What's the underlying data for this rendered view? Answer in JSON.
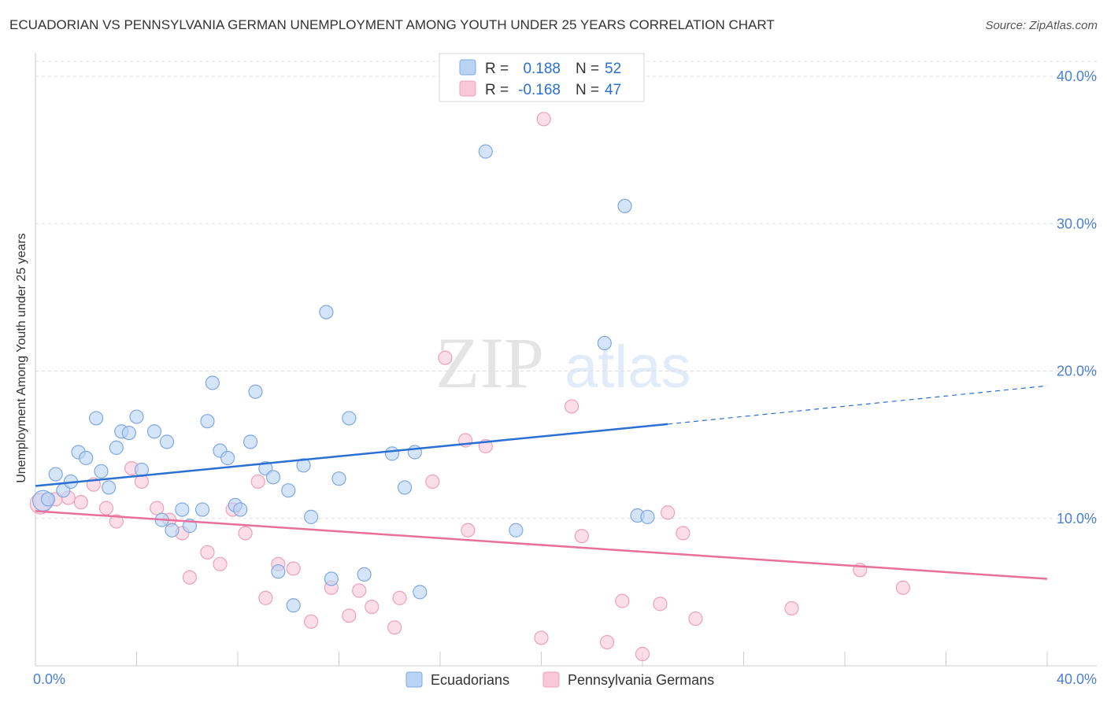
{
  "title": "ECUADORIAN VS PENNSYLVANIA GERMAN UNEMPLOYMENT AMONG YOUTH UNDER 25 YEARS CORRELATION CHART",
  "source": "Source: ZipAtlas.com",
  "colors": {
    "blue_fill": "#b9d3f5",
    "blue_stroke": "#7fa8e0",
    "blue_line": "#2a6fd4",
    "pink_fill": "#f9c8d8",
    "pink_stroke": "#eda0bb",
    "pink_line": "#e8709a",
    "label_blue": "#4a7fd4"
  },
  "chart_data": {
    "type": "scatter",
    "title": "ECUADORIAN VS PENNSYLVANIA GERMAN UNEMPLOYMENT AMONG YOUTH UNDER 25 YEARS CORRELATION CHART",
    "xlabel": "",
    "ylabel": "Unemployment Among Youth under 25 years",
    "xlim": [
      0,
      40
    ],
    "ylim": [
      0,
      42
    ],
    "x_tick_labels": [
      "0.0%",
      "40.0%"
    ],
    "y_ticks": [
      10,
      20,
      30,
      40
    ],
    "y_tick_labels": [
      "10.0%",
      "20.0%",
      "30.0%",
      "40.0%"
    ],
    "legend": {
      "r_label": "R =",
      "n_label": "N =",
      "entries": [
        {
          "r": "0.188",
          "n": "52"
        },
        {
          "r": "-0.168",
          "n": "47"
        }
      ]
    },
    "series": [
      {
        "name": "Ecuadorians",
        "color": "#b9d3f5",
        "trend": {
          "x0": 0,
          "y0": 12.2,
          "x1": 25,
          "y1": 16.4,
          "dash_x1": 40,
          "dash_y1": 19.0
        },
        "points": [
          [
            0.3,
            11.2
          ],
          [
            0.5,
            11.3
          ],
          [
            0.8,
            13.0
          ],
          [
            1.1,
            11.9
          ],
          [
            1.4,
            12.5
          ],
          [
            1.7,
            14.5
          ],
          [
            2.0,
            14.1
          ],
          [
            2.4,
            16.8
          ],
          [
            2.6,
            13.2
          ],
          [
            2.9,
            12.1
          ],
          [
            3.2,
            14.8
          ],
          [
            3.4,
            15.9
          ],
          [
            3.7,
            15.8
          ],
          [
            4.0,
            16.9
          ],
          [
            4.2,
            13.3
          ],
          [
            4.7,
            15.9
          ],
          [
            5.0,
            9.9
          ],
          [
            5.2,
            15.2
          ],
          [
            5.4,
            9.2
          ],
          [
            5.8,
            10.6
          ],
          [
            6.1,
            9.5
          ],
          [
            6.6,
            10.6
          ],
          [
            6.8,
            16.6
          ],
          [
            7.0,
            19.2
          ],
          [
            7.3,
            14.6
          ],
          [
            7.6,
            14.1
          ],
          [
            7.9,
            10.9
          ],
          [
            8.1,
            10.6
          ],
          [
            8.5,
            15.2
          ],
          [
            8.7,
            18.6
          ],
          [
            9.1,
            13.4
          ],
          [
            9.4,
            12.8
          ],
          [
            9.6,
            6.4
          ],
          [
            10.0,
            11.9
          ],
          [
            10.2,
            4.1
          ],
          [
            10.6,
            13.6
          ],
          [
            10.9,
            10.1
          ],
          [
            11.5,
            24.0
          ],
          [
            11.7,
            5.9
          ],
          [
            12.0,
            12.7
          ],
          [
            12.4,
            16.8
          ],
          [
            13.0,
            6.2
          ],
          [
            14.1,
            14.4
          ],
          [
            14.6,
            12.1
          ],
          [
            15.0,
            14.5
          ],
          [
            15.2,
            5.0
          ],
          [
            17.8,
            34.9
          ],
          [
            19.0,
            9.2
          ],
          [
            22.5,
            21.9
          ],
          [
            23.3,
            31.2
          ],
          [
            23.8,
            10.2
          ],
          [
            24.2,
            10.1
          ]
        ]
      },
      {
        "name": "Pennsylvania Germans",
        "color": "#f9c8d8",
        "trend": {
          "x0": 0,
          "y0": 10.5,
          "x1": 40,
          "y1": 5.9
        },
        "points": [
          [
            0.2,
            11.0
          ],
          [
            0.8,
            11.3
          ],
          [
            1.3,
            11.4
          ],
          [
            1.8,
            11.1
          ],
          [
            2.3,
            12.3
          ],
          [
            2.8,
            10.7
          ],
          [
            3.2,
            9.8
          ],
          [
            3.8,
            13.4
          ],
          [
            4.2,
            12.5
          ],
          [
            4.8,
            10.7
          ],
          [
            5.3,
            9.9
          ],
          [
            5.8,
            9.0
          ],
          [
            6.1,
            6.0
          ],
          [
            6.8,
            7.7
          ],
          [
            7.3,
            6.9
          ],
          [
            7.8,
            10.6
          ],
          [
            8.3,
            9.0
          ],
          [
            8.8,
            12.5
          ],
          [
            9.1,
            4.6
          ],
          [
            9.6,
            6.9
          ],
          [
            10.2,
            6.6
          ],
          [
            10.9,
            3.0
          ],
          [
            11.7,
            5.3
          ],
          [
            12.4,
            3.4
          ],
          [
            12.8,
            5.1
          ],
          [
            13.3,
            4.0
          ],
          [
            14.2,
            2.6
          ],
          [
            14.4,
            4.6
          ],
          [
            15.7,
            12.5
          ],
          [
            16.2,
            20.9
          ],
          [
            17.0,
            15.3
          ],
          [
            17.1,
            9.2
          ],
          [
            17.8,
            14.9
          ],
          [
            20.0,
            1.9
          ],
          [
            20.1,
            37.1
          ],
          [
            21.2,
            17.6
          ],
          [
            21.6,
            8.8
          ],
          [
            22.6,
            1.6
          ],
          [
            23.2,
            4.4
          ],
          [
            24.0,
            0.8
          ],
          [
            24.7,
            4.2
          ],
          [
            25.0,
            10.4
          ],
          [
            25.6,
            9.0
          ],
          [
            26.1,
            3.2
          ],
          [
            29.9,
            3.9
          ],
          [
            32.6,
            6.5
          ],
          [
            34.3,
            5.3
          ]
        ]
      }
    ]
  },
  "bottom_legend": [
    "Ecuadorians",
    "Pennsylvania Germans"
  ],
  "watermark": {
    "part1": "ZIP",
    "part2": "atlas"
  }
}
